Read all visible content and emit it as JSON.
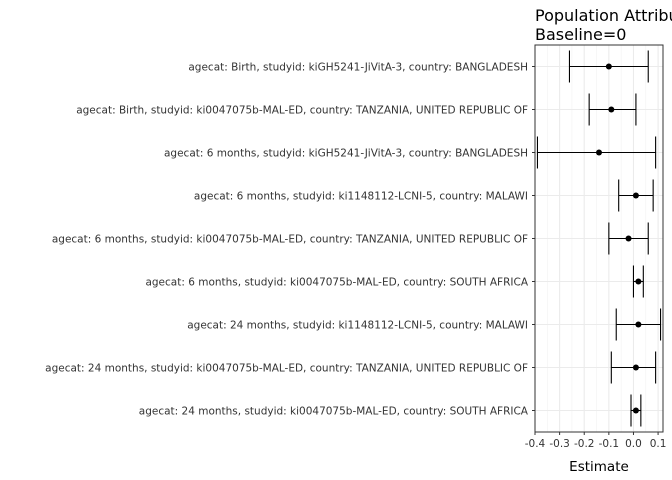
{
  "chart_data": {
    "type": "forest",
    "title": "Population Attributable Fraction",
    "subtitle": "Baseline=0",
    "xlabel": "Estimate",
    "xlim": [
      -0.4,
      0.12
    ],
    "xticks": [
      -0.4,
      -0.3,
      -0.2,
      -0.1,
      0.0,
      0.1
    ],
    "xtick_labels": [
      "-0.4",
      "-0.3",
      "-0.2",
      "-0.1",
      "0.0",
      "0.1"
    ],
    "grid": true,
    "rows": [
      {
        "label": "agecat: Birth, studyid: kiGH5241-JiVitA-3, country: BANGLADESH",
        "estimate": -0.1,
        "lower": -0.26,
        "upper": 0.06
      },
      {
        "label": "agecat: Birth, studyid: ki0047075b-MAL-ED, country: TANZANIA, UNITED REPUBLIC OF",
        "estimate": -0.09,
        "lower": -0.18,
        "upper": 0.01
      },
      {
        "label": "agecat: 6 months, studyid: kiGH5241-JiVitA-3, country: BANGLADESH",
        "estimate": -0.14,
        "lower": -0.39,
        "upper": 0.09
      },
      {
        "label": "agecat: 6 months, studyid: ki1148112-LCNI-5, country: MALAWI",
        "estimate": 0.01,
        "lower": -0.06,
        "upper": 0.08
      },
      {
        "label": "agecat: 6 months, studyid: ki0047075b-MAL-ED, country: TANZANIA, UNITED REPUBLIC OF",
        "estimate": -0.02,
        "lower": -0.1,
        "upper": 0.06
      },
      {
        "label": "agecat: 6 months, studyid: ki0047075b-MAL-ED, country: SOUTH AFRICA",
        "estimate": 0.02,
        "lower": 0.0,
        "upper": 0.04
      },
      {
        "label": "agecat: 24 months, studyid: ki1148112-LCNI-5, country: MALAWI",
        "estimate": 0.02,
        "lower": -0.07,
        "upper": 0.11
      },
      {
        "label": "agecat: 24 months, studyid: ki0047075b-MAL-ED, country: TANZANIA, UNITED REPUBLIC OF",
        "estimate": 0.01,
        "lower": -0.09,
        "upper": 0.09
      },
      {
        "label": "agecat: 24 months, studyid: ki0047075b-MAL-ED, country: SOUTH AFRICA",
        "estimate": 0.01,
        "lower": -0.01,
        "upper": 0.03
      }
    ]
  }
}
